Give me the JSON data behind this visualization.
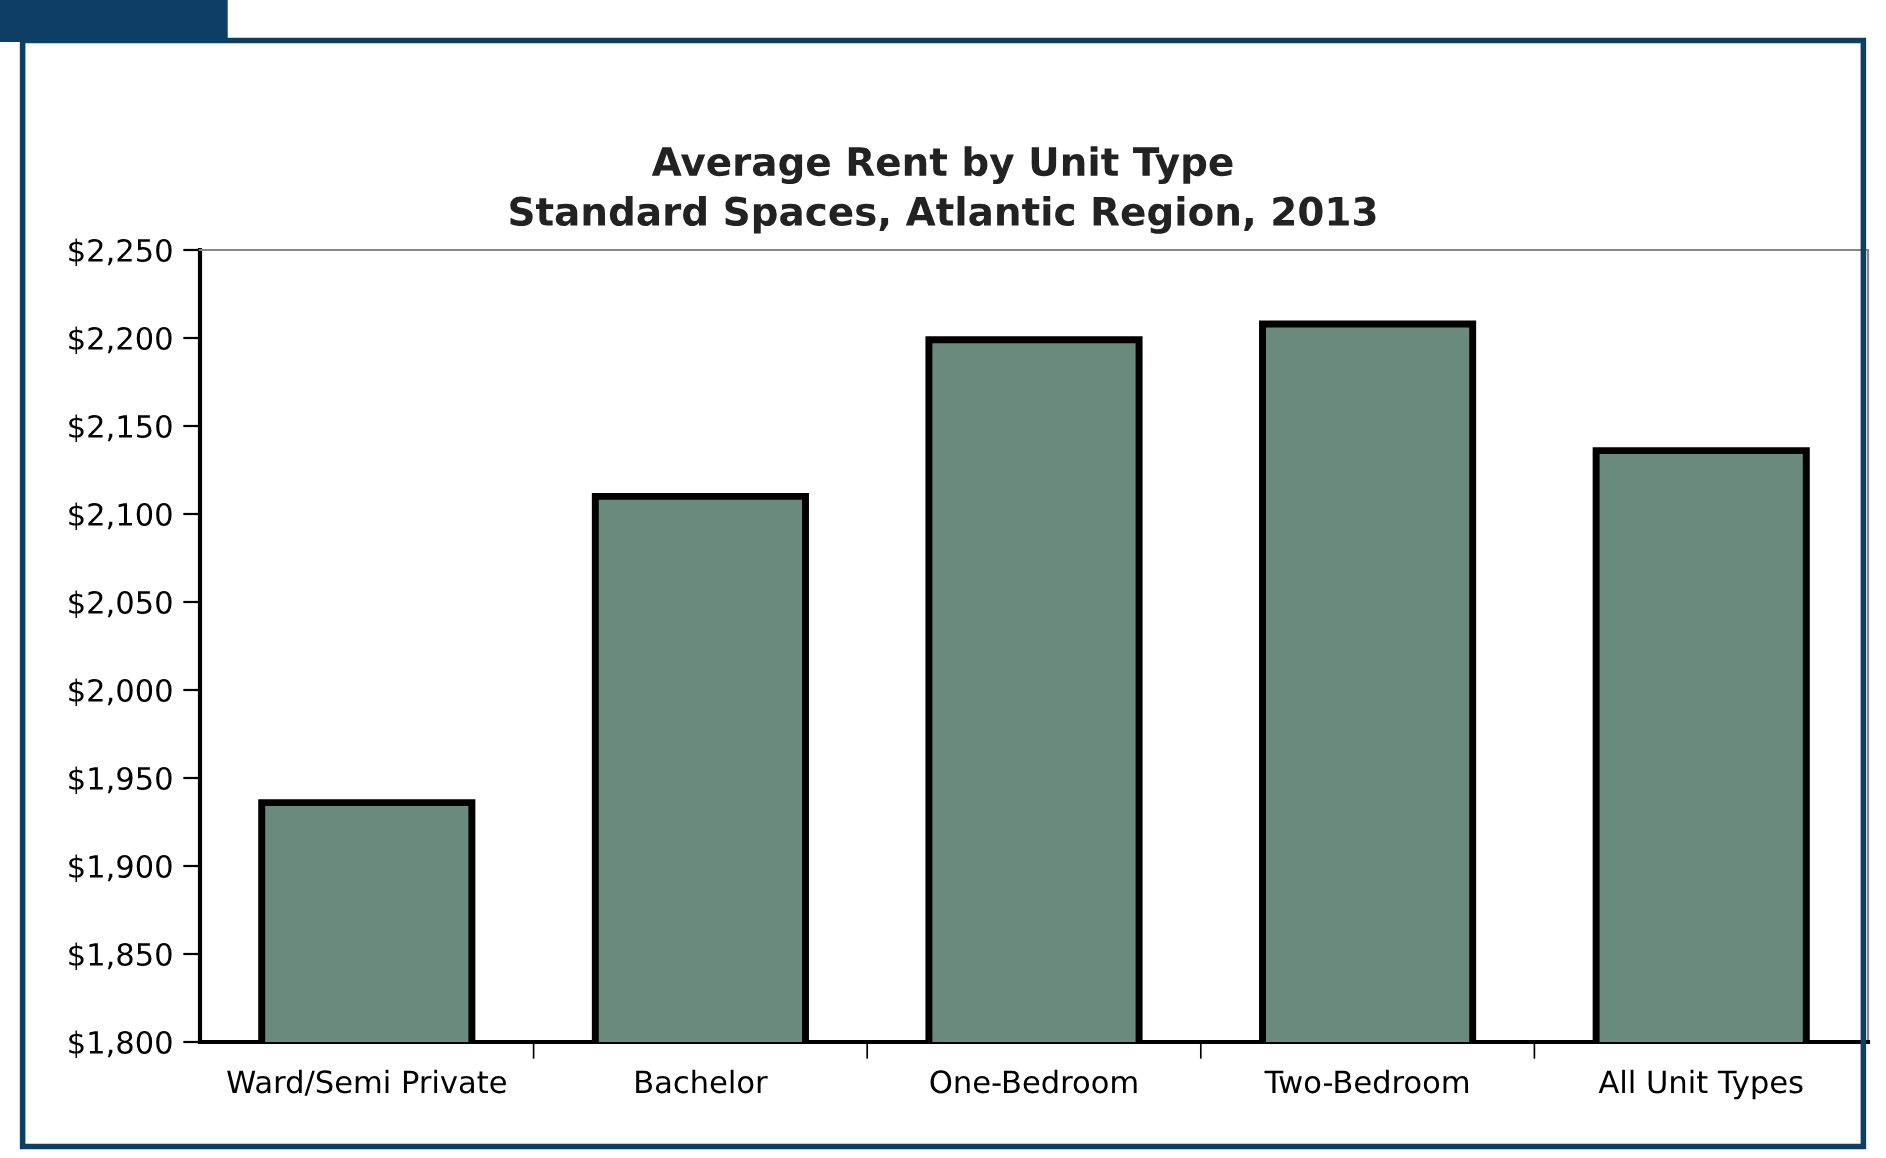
{
  "chart_data": {
    "type": "bar",
    "title": "Average Rent by Unit Type\nStandard Spaces, Atlantic Region, 2013",
    "categories": [
      "Ward/Semi Private",
      "Bachelor",
      "One-Bedroom",
      "Two-Bedroom",
      "All Unit Types"
    ],
    "values": [
      1936,
      2110,
      2199,
      2208,
      2136
    ],
    "color": "#6b8a7e",
    "ylim": [
      1800,
      2250
    ],
    "yticks": [
      {
        "value": 1800,
        "label": "$1,800"
      },
      {
        "value": 1850,
        "label": "$1,850"
      },
      {
        "value": 1900,
        "label": "$1,900"
      },
      {
        "value": 1950,
        "label": "$1,950"
      },
      {
        "value": 2000,
        "label": "$2,000"
      },
      {
        "value": 2050,
        "label": "$2,050"
      },
      {
        "value": 2100,
        "label": "$2,100"
      },
      {
        "value": 2150,
        "label": "$2,150"
      },
      {
        "value": 2200,
        "label": "$2,200"
      },
      {
        "value": 2250,
        "label": "$2,250"
      }
    ],
    "grid": false,
    "legend": false
  }
}
